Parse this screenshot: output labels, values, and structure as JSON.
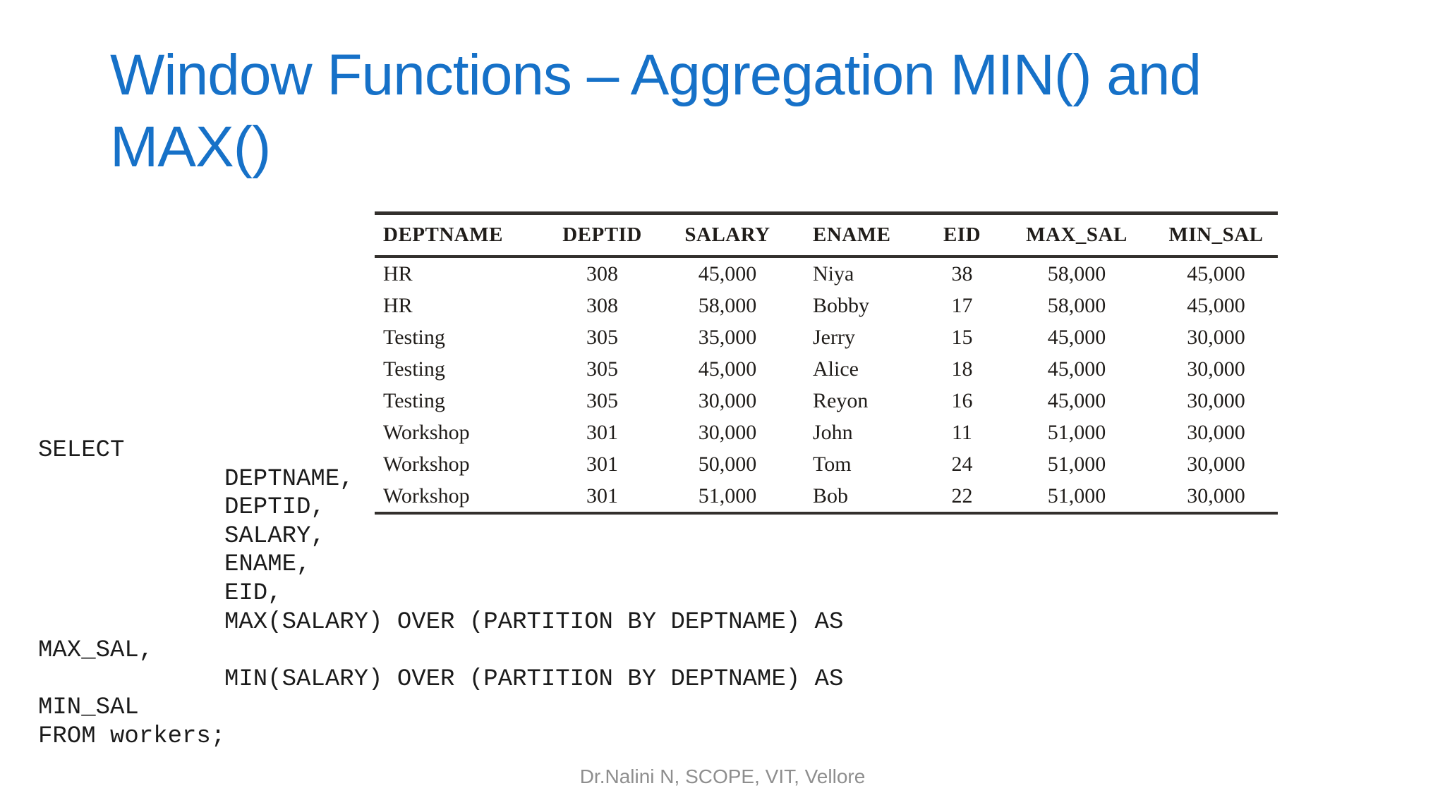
{
  "slide": {
    "title_line1": "Window Functions – Aggregation MIN() and",
    "title_line2": "MAX()",
    "title_full": "Window Functions – Aggregation MIN() and MAX()"
  },
  "result_table": {
    "columns": [
      "DEPTNAME",
      "DEPTID",
      "SALARY",
      "ENAME",
      "EID",
      "MAX_SAL",
      "MIN_SAL"
    ],
    "rows": [
      [
        "HR",
        "308",
        "45,000",
        "Niya",
        "38",
        "58,000",
        "45,000"
      ],
      [
        "HR",
        "308",
        "58,000",
        "Bobby",
        "17",
        "58,000",
        "45,000"
      ],
      [
        "Testing",
        "305",
        "35,000",
        "Jerry",
        "15",
        "45,000",
        "30,000"
      ],
      [
        "Testing",
        "305",
        "45,000",
        "Alice",
        "18",
        "45,000",
        "30,000"
      ],
      [
        "Testing",
        "305",
        "30,000",
        "Reyon",
        "16",
        "45,000",
        "30,000"
      ],
      [
        "Workshop",
        "301",
        "30,000",
        "John",
        "11",
        "51,000",
        "30,000"
      ],
      [
        "Workshop",
        "301",
        "50,000",
        "Tom",
        "24",
        "51,000",
        "30,000"
      ],
      [
        "Workshop",
        "301",
        "51,000",
        "Bob",
        "22",
        "51,000",
        "30,000"
      ]
    ]
  },
  "sql_code": {
    "lines": [
      {
        "text": "SELECT",
        "indent": 0
      },
      {
        "text": "DEPTNAME,",
        "indent": 1
      },
      {
        "text": "DEPTID,",
        "indent": 1
      },
      {
        "text": "SALARY,",
        "indent": 1
      },
      {
        "text": "ENAME,",
        "indent": 1
      },
      {
        "text": "EID,",
        "indent": 1
      },
      {
        "text": "MAX(SALARY) OVER (PARTITION BY DEPTNAME) AS",
        "indent": 1
      },
      {
        "text": "MAX_SAL,",
        "indent": 0
      },
      {
        "text": "MIN(SALARY) OVER (PARTITION BY DEPTNAME) AS",
        "indent": 1
      },
      {
        "text": "MIN_SAL",
        "indent": 0
      },
      {
        "text": "FROM workers;",
        "indent": 0
      }
    ]
  },
  "footer": {
    "credit": "Dr.Nalini N, SCOPE, VIT, Vellore"
  },
  "colors": {
    "title_blue": "#1671C8",
    "table_text": "#201D1A",
    "table_rule": "#33302D",
    "code_text": "#1B1B1B",
    "footer_gray": "#8E8E8E",
    "background": "#FFFFFF"
  }
}
